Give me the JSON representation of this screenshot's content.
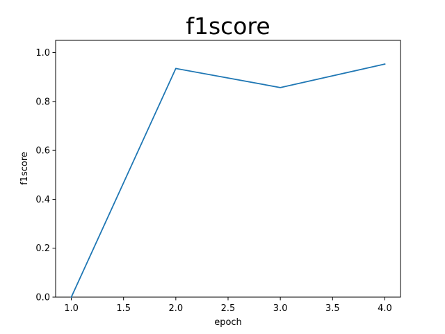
{
  "chart_data": {
    "type": "line",
    "title": "f1score",
    "xlabel": "epoch",
    "ylabel": "f1score",
    "xlim": [
      0.85,
      4.15
    ],
    "ylim": [
      0.0,
      1.05
    ],
    "xticks": [
      1.0,
      1.5,
      2.0,
      2.5,
      3.0,
      3.5,
      4.0
    ],
    "xtick_labels": [
      "1.0",
      "1.5",
      "2.0",
      "2.5",
      "3.0",
      "3.5",
      "4.0"
    ],
    "yticks": [
      0.0,
      0.2,
      0.4,
      0.6,
      0.8,
      1.0
    ],
    "ytick_labels": [
      "0.0",
      "0.2",
      "0.4",
      "0.6",
      "0.8",
      "1.0"
    ],
    "grid": false,
    "legend": "none",
    "series": [
      {
        "color": "#1f77b4",
        "x": [
          1,
          2,
          3,
          4
        ],
        "y": [
          0.0,
          0.935,
          0.857,
          0.953
        ]
      }
    ]
  }
}
